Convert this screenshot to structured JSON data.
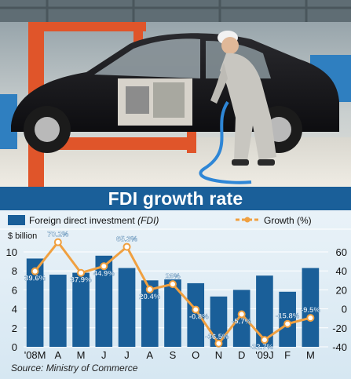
{
  "colors": {
    "title_bg": "#1a5f99",
    "bar": "#1a5f99",
    "line": "#f0a040",
    "marker_fill": "#ffffff"
  },
  "photo": {
    "description_icon": "car-assembly-photo"
  },
  "chart_data": {
    "type": "bar+line",
    "title": "FDI growth rate",
    "categories": [
      "'08M",
      "A",
      "M",
      "J",
      "J",
      "A",
      "S",
      "O",
      "N",
      "D",
      "'09J",
      "F",
      "M"
    ],
    "series": [
      {
        "name": "Foreign direct investment (FDI)",
        "type": "bar",
        "axis": "left",
        "values": [
          9.3,
          7.6,
          7.8,
          9.6,
          8.3,
          7.0,
          7.1,
          6.7,
          5.3,
          6.0,
          7.5,
          5.8,
          8.3
        ]
      },
      {
        "name": "Growth (%)",
        "type": "line",
        "axis": "right",
        "values": [
          39.6,
          70.2,
          37.9,
          44.9,
          65.3,
          20.4,
          26,
          -0.8,
          -36.5,
          -5.7,
          -32.7,
          -15.8,
          -9.5
        ],
        "labels": [
          "39.6%",
          "70.2%",
          "37.9%",
          "44.9%",
          "65.3%",
          "20.4%",
          "26%",
          "-0.8%",
          "-36.5%",
          "-5.7%",
          "-32.7%",
          "-15.8%",
          "-9.5%"
        ]
      }
    ],
    "left_axis": {
      "label": "$ billion",
      "range": [
        0,
        10
      ],
      "ticks": [
        "0",
        "2",
        "4",
        "6",
        "8",
        "10"
      ]
    },
    "right_axis": {
      "range": [
        -40,
        60
      ],
      "ticks": [
        "-40",
        "-20",
        "0",
        "20",
        "40",
        "60"
      ]
    },
    "legend": {
      "bar_label": "Foreign direct investment",
      "bar_label_italic": "(FDI)",
      "line_label": "Growth (%)",
      "placement": "top"
    },
    "source": "Source: Ministry of Commerce"
  }
}
